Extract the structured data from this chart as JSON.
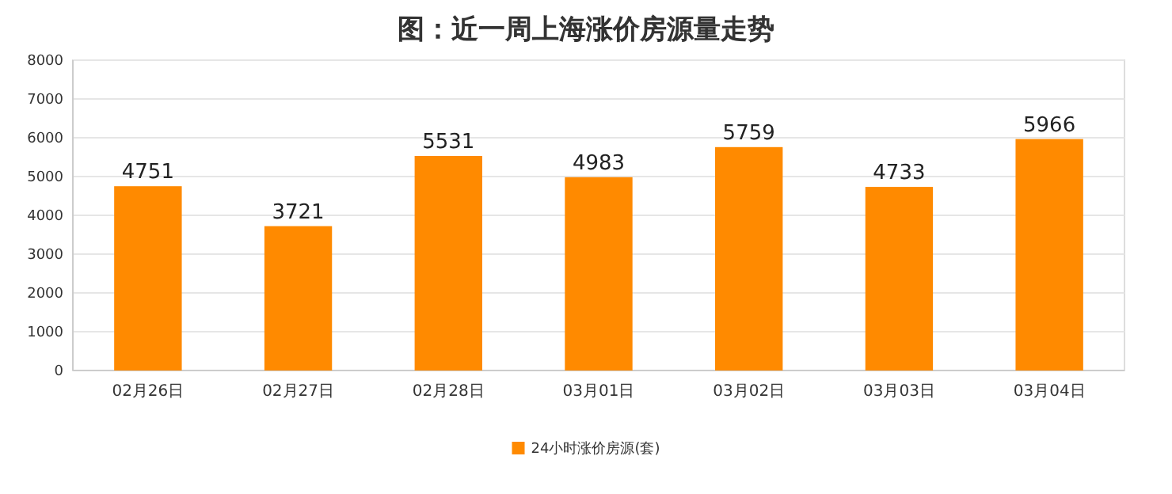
{
  "chart_data": {
    "type": "bar",
    "title": "图：近一周上海涨价房源量走势",
    "categories": [
      "02月26日",
      "02月27日",
      "02月28日",
      "03月01日",
      "03月02日",
      "03月03日",
      "03月04日"
    ],
    "series": [
      {
        "name": "24小时涨价房源(套)",
        "color": "#ff8a00",
        "values": [
          4751,
          3721,
          5531,
          4983,
          5759,
          4733,
          5966
        ]
      }
    ],
    "ylim": [
      0,
      8000
    ],
    "yticks": [
      0,
      1000,
      2000,
      3000,
      4000,
      5000,
      6000,
      7000,
      8000
    ],
    "grid": "y",
    "data_labels": true,
    "legend": "bottom"
  }
}
